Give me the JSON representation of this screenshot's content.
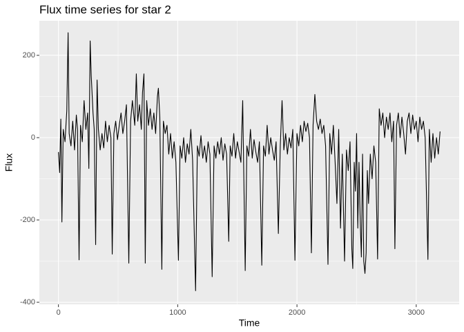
{
  "chart_data": {
    "type": "line",
    "title": "Flux time series for star 2",
    "x_label": "Time",
    "y_label": "Flux",
    "color": "#000000",
    "grid": true,
    "xlim": [
      -160,
      3360
    ],
    "ylim": [
      -405,
      284
    ],
    "xticks": [
      0,
      1000,
      2000,
      3000
    ],
    "yticks": [
      -400,
      -200,
      0,
      200
    ],
    "x": [
      0,
      10,
      20,
      29,
      40,
      55,
      70,
      81,
      90,
      105,
      120,
      135,
      150,
      160,
      173,
      185,
      200,
      215,
      230,
      245,
      255,
      266,
      275,
      290,
      300,
      312,
      324,
      335,
      350,
      365,
      380,
      395,
      410,
      425,
      440,
      451,
      465,
      480,
      495,
      510,
      525,
      540,
      555,
      570,
      590,
      605,
      620,
      640,
      653,
      665,
      680,
      695,
      705,
      717,
      728,
      740,
      755,
      770,
      785,
      800,
      815,
      830,
      838,
      850,
      867,
      880,
      895,
      910,
      925,
      940,
      955,
      970,
      985,
      1006,
      1020,
      1035,
      1050,
      1065,
      1080,
      1095,
      1110,
      1125,
      1150,
      1165,
      1180,
      1195,
      1210,
      1225,
      1240,
      1255,
      1270,
      1289,
      1305,
      1320,
      1335,
      1350,
      1365,
      1380,
      1395,
      1410,
      1428,
      1440,
      1455,
      1470,
      1485,
      1500,
      1515,
      1530,
      1545,
      1566,
      1580,
      1595,
      1610,
      1625,
      1640,
      1655,
      1670,
      1685,
      1705,
      1720,
      1735,
      1750,
      1765,
      1780,
      1795,
      1810,
      1825,
      1844,
      1860,
      1875,
      1890,
      1905,
      1920,
      1935,
      1950,
      1965,
      1983,
      2000,
      2015,
      2030,
      2045,
      2060,
      2075,
      2090,
      2105,
      2121,
      2135,
      2150,
      2165,
      2180,
      2195,
      2210,
      2225,
      2240,
      2260,
      2275,
      2290,
      2305,
      2320,
      2335,
      2350,
      2365,
      2380,
      2399,
      2415,
      2430,
      2445,
      2460,
      2468,
      2480,
      2490,
      2500,
      2510,
      2520,
      2530,
      2540,
      2550,
      2560,
      2570,
      2580,
      2590,
      2600,
      2615,
      2630,
      2645,
      2660,
      2676,
      2690,
      2705,
      2720,
      2735,
      2750,
      2765,
      2780,
      2795,
      2810,
      2821,
      2835,
      2850,
      2865,
      2880,
      2895,
      2910,
      2925,
      2940,
      2955,
      2970,
      2985,
      3000,
      3015,
      3030,
      3045,
      3060,
      3075,
      3098,
      3110,
      3125,
      3140,
      3155,
      3170,
      3185,
      3200
    ],
    "values": [
      -35,
      -85,
      45,
      -205,
      20,
      -10,
      65,
      255,
      10,
      -20,
      40,
      -30,
      55,
      20,
      -297,
      30,
      -10,
      90,
      20,
      60,
      -75,
      235,
      150,
      60,
      20,
      -260,
      140,
      20,
      -30,
      10,
      -25,
      40,
      -10,
      30,
      0,
      -283,
      10,
      40,
      -5,
      30,
      60,
      10,
      40,
      80,
      -305,
      40,
      90,
      30,
      155,
      40,
      80,
      20,
      110,
      155,
      -305,
      90,
      30,
      70,
      20,
      60,
      10,
      100,
      120,
      50,
      -320,
      40,
      10,
      30,
      -40,
      10,
      -50,
      -10,
      -60,
      -298,
      -20,
      -50,
      0,
      -60,
      -15,
      -40,
      20,
      -55,
      -372,
      -20,
      -45,
      5,
      -50,
      -20,
      -60,
      -10,
      -40,
      -338,
      -20,
      -50,
      -10,
      -40,
      0,
      -55,
      -15,
      -40,
      -252,
      -20,
      -45,
      10,
      -50,
      -10,
      -35,
      -60,
      90,
      -323,
      -20,
      -45,
      20,
      -50,
      -5,
      -35,
      -60,
      -10,
      -310,
      -20,
      -45,
      30,
      -40,
      0,
      -30,
      -55,
      -10,
      -233,
      -20,
      90,
      -30,
      10,
      -40,
      0,
      -25,
      20,
      -298,
      10,
      -20,
      30,
      -10,
      40,
      15,
      35,
      0,
      -280,
      30,
      105,
      40,
      20,
      45,
      10,
      30,
      -20,
      -308,
      10,
      -40,
      30,
      -60,
      -160,
      20,
      -220,
      -40,
      -300,
      -30,
      -80,
      -10,
      -270,
      -318,
      -60,
      -130,
      10,
      -220,
      -60,
      -200,
      -290,
      -40,
      -300,
      -330,
      -280,
      -80,
      -160,
      -40,
      -100,
      -20,
      -60,
      -295,
      70,
      30,
      60,
      0,
      50,
      20,
      60,
      -10,
      40,
      -270,
      30,
      60,
      0,
      50,
      10,
      -40,
      40,
      60,
      10,
      55,
      20,
      40,
      -10,
      50,
      20,
      40,
      0,
      -296,
      20,
      -60,
      10,
      -50,
      0,
      -40,
      15
    ]
  }
}
